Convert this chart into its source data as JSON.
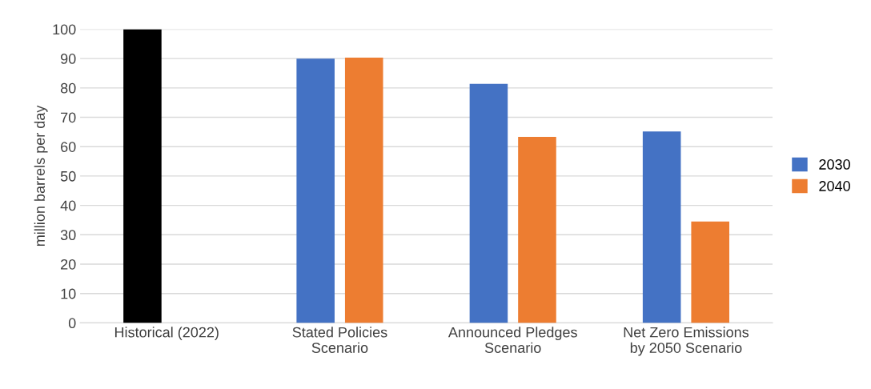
{
  "chart_data": {
    "type": "bar",
    "ylabel": "million barrels per day",
    "categories": [
      "Historical (2022)",
      "Stated Policies\nScenario",
      "Announced Pledges\nScenario",
      "Net Zero Emissions\nby 2050 Scenario"
    ],
    "series": [
      {
        "name": "2030",
        "color": "#4472c4",
        "colors": [
          "#000000",
          "#4472c4",
          "#4472c4",
          "#4472c4"
        ],
        "values": [
          100,
          90,
          81.4,
          65.2
        ]
      },
      {
        "name": "2040",
        "color": "#ed7d31",
        "values": [
          null,
          90.3,
          63.3,
          34.5
        ]
      }
    ],
    "ylim": [
      0,
      100
    ],
    "yticks": [
      0,
      10,
      20,
      30,
      40,
      50,
      60,
      70,
      80,
      90,
      100
    ],
    "grid": "y",
    "legend": "right"
  }
}
